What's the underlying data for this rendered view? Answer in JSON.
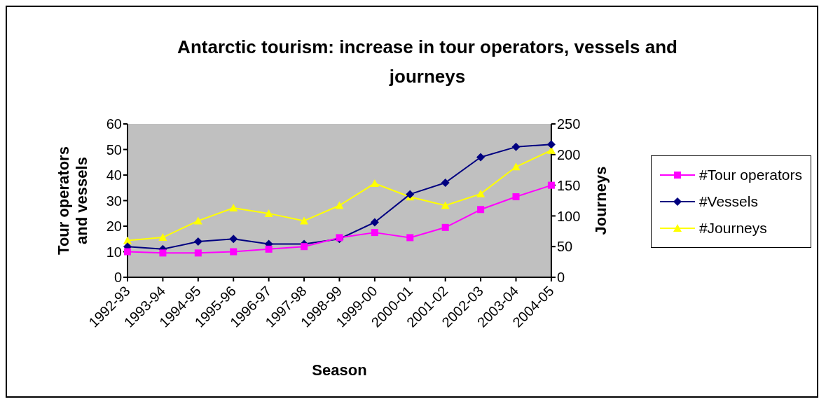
{
  "chart_data": {
    "type": "line",
    "title": "Antarctic tourism: increase in tour operators, vessels and journeys",
    "xlabel": "Season",
    "ylabel": "Tour operators and vessels",
    "y2label": "Journeys",
    "categories": [
      "1992-93",
      "1993-94",
      "1994-95",
      "1995-96",
      "1996-97",
      "1997-98",
      "1998-99",
      "1999-00",
      "2000-01",
      "2001-02",
      "2002-03",
      "2003-04",
      "2004-05"
    ],
    "series": [
      {
        "name": "#Tour operators",
        "color": "#ff00ff",
        "marker": "square",
        "values": [
          10,
          9.5,
          9.5,
          10,
          11,
          12,
          15.5,
          17.5,
          15.5,
          19.5,
          26.5,
          31.5,
          36
        ]
      },
      {
        "name": "#Vessels",
        "color": "#000080",
        "marker": "diamond",
        "values": [
          12,
          11,
          14,
          15,
          13,
          13,
          15,
          21.5,
          32.5,
          37,
          47,
          51,
          52
        ]
      },
      {
        "name": "#Journeys",
        "color": "#ffff00",
        "marker": "triangle",
        "axis": "y2",
        "values": [
          60,
          65,
          92,
          113,
          104,
          92,
          117,
          153,
          131,
          117,
          136,
          180,
          207
        ]
      }
    ],
    "ylim": [
      0,
      60
    ],
    "yticks": [
      0,
      10,
      20,
      30,
      40,
      50,
      60
    ],
    "y2lim": [
      0,
      250
    ],
    "y2ticks": [
      0,
      50,
      100,
      150,
      200,
      250
    ],
    "grid": false,
    "legend": "right",
    "line_style": "solid"
  }
}
